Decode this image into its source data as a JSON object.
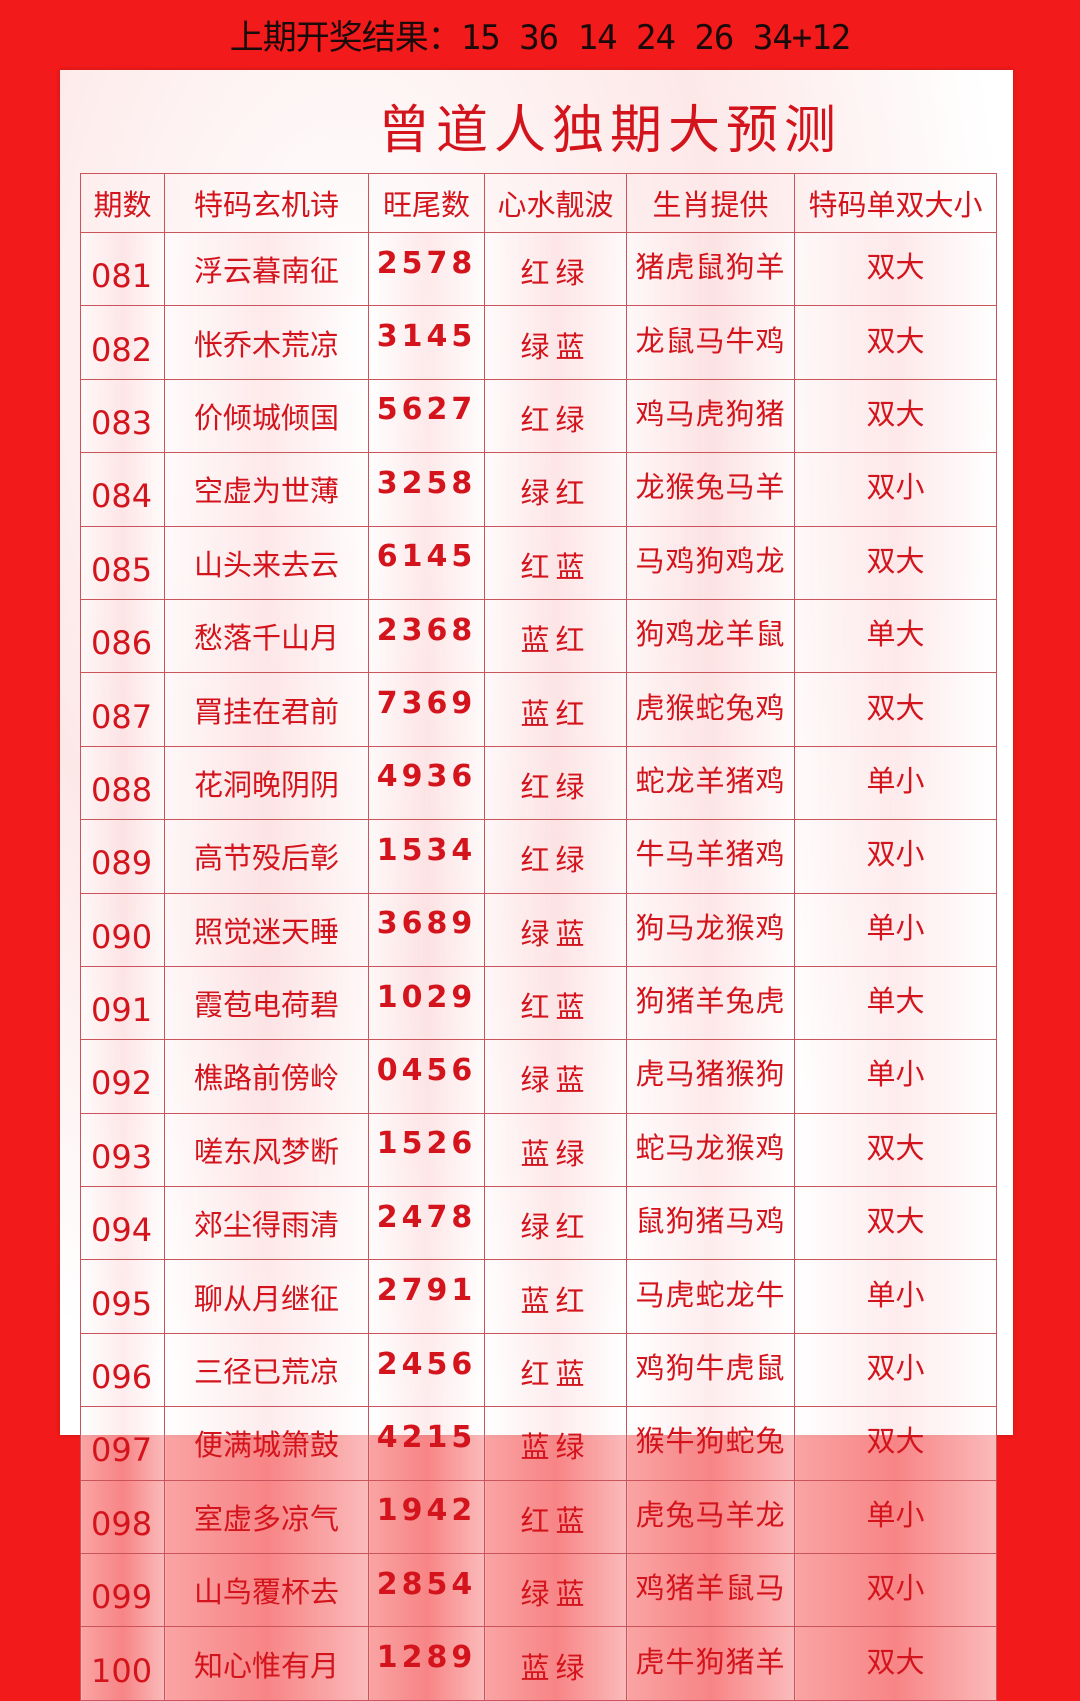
{
  "header": {
    "label": "上期开奖结果：",
    "numbers": "15 36 14 24 26 34+12"
  },
  "title": "曾道人独期大预测",
  "columns": [
    "期数",
    "特码玄机诗",
    "旺尾数",
    "心水靓波",
    "生肖提供",
    "特码单双大小"
  ],
  "rows": [
    [
      "081",
      "浮云暮南征",
      "2578",
      "红绿",
      "猪虎鼠狗羊",
      "双大"
    ],
    [
      "082",
      "怅乔木荒凉",
      "3145",
      "绿蓝",
      "龙鼠马牛鸡",
      "双大"
    ],
    [
      "083",
      "价倾城倾国",
      "5627",
      "红绿",
      "鸡马虎狗猪",
      "双大"
    ],
    [
      "084",
      "空虚为世薄",
      "3258",
      "绿红",
      "龙猴兔马羊",
      "双小"
    ],
    [
      "085",
      "山头来去云",
      "6145",
      "红蓝",
      "马鸡狗鸡龙",
      "双大"
    ],
    [
      "086",
      "愁落千山月",
      "2368",
      "蓝红",
      "狗鸡龙羊鼠",
      "单大"
    ],
    [
      "087",
      "罥挂在君前",
      "7369",
      "蓝红",
      "虎猴蛇兔鸡",
      "双大"
    ],
    [
      "088",
      "花洞晚阴阴",
      "4936",
      "红绿",
      "蛇龙羊猪鸡",
      "单小"
    ],
    [
      "089",
      "高节殁后彰",
      "1534",
      "红绿",
      "牛马羊猪鸡",
      "双小"
    ],
    [
      "090",
      "照觉迷天睡",
      "3689",
      "绿蓝",
      "狗马龙猴鸡",
      "单小"
    ],
    [
      "091",
      "霞苞电荷碧",
      "1029",
      "红蓝",
      "狗猪羊兔虎",
      "单大"
    ],
    [
      "092",
      "樵路前傍岭",
      "0456",
      "绿蓝",
      "虎马猪猴狗",
      "单小"
    ],
    [
      "093",
      "嗟东风梦断",
      "1526",
      "蓝绿",
      "蛇马龙猴鸡",
      "双大"
    ],
    [
      "094",
      "郊尘得雨清",
      "2478",
      "绿红",
      "鼠狗猪马鸡",
      "双大"
    ],
    [
      "095",
      "聊从月继征",
      "2791",
      "蓝红",
      "马虎蛇龙牛",
      "单小"
    ],
    [
      "096",
      "三径已荒凉",
      "2456",
      "红蓝",
      "鸡狗牛虎鼠",
      "双小"
    ],
    [
      "097",
      "便满城箫鼓",
      "4215",
      "蓝绿",
      "猴牛狗蛇兔",
      "双大"
    ],
    [
      "098",
      "室虚多凉气",
      "1942",
      "红蓝",
      "虎兔马羊龙",
      "单小"
    ],
    [
      "099",
      "山鸟覆杯去",
      "2854",
      "绿蓝",
      "鸡猪羊鼠马",
      "双小"
    ],
    [
      "100",
      "知心惟有月",
      "1289",
      "蓝绿",
      "虎牛狗猪羊",
      "双大"
    ]
  ],
  "colors": {
    "background": "#f21a1a",
    "text_red": "#d4141c",
    "border": "#c9545c"
  }
}
